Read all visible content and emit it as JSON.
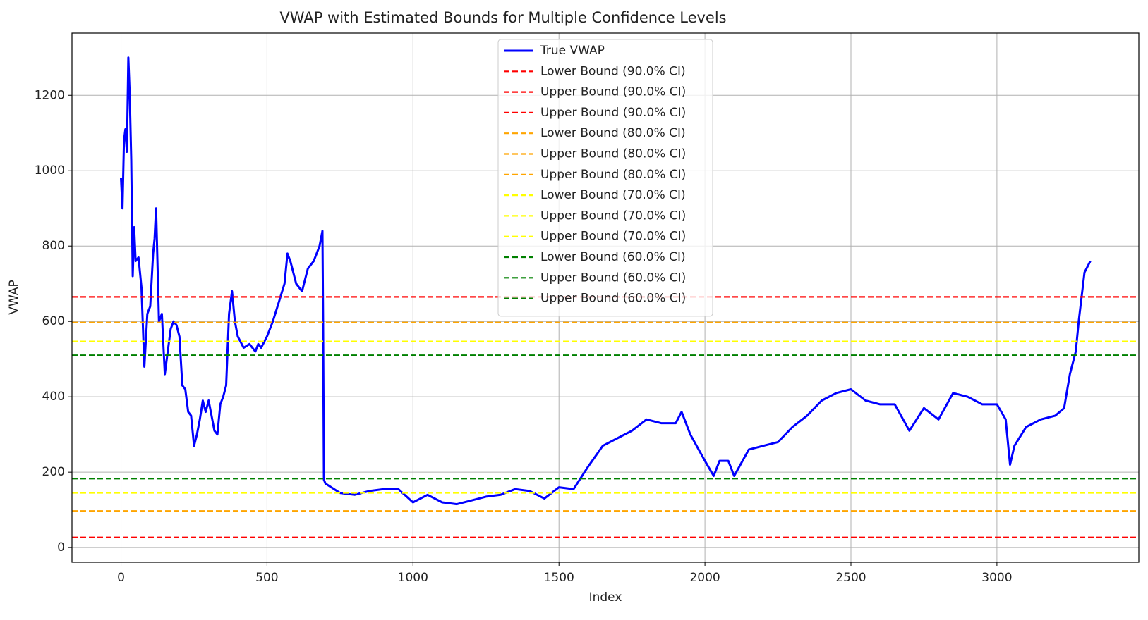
{
  "chart_data": {
    "type": "line",
    "title": "VWAP with Estimated Bounds for Multiple Confidence Levels",
    "xlabel": "Index",
    "ylabel": "VWAP",
    "xlim": [
      -168,
      3486
    ],
    "ylim": [
      -39,
      1365
    ],
    "xticks": [
      0,
      500,
      1000,
      1500,
      2000,
      2500,
      3000
    ],
    "yticks": [
      0,
      200,
      400,
      600,
      800,
      1000,
      1200
    ],
    "grid": true,
    "legend": "upper center",
    "x": [
      0,
      5,
      10,
      15,
      20,
      25,
      30,
      35,
      40,
      45,
      50,
      60,
      70,
      80,
      90,
      100,
      110,
      115,
      120,
      130,
      140,
      150,
      160,
      170,
      180,
      190,
      200,
      210,
      220,
      230,
      240,
      250,
      260,
      270,
      280,
      290,
      300,
      310,
      320,
      330,
      340,
      350,
      360,
      370,
      380,
      390,
      400,
      420,
      440,
      460,
      470,
      480,
      500,
      520,
      540,
      560,
      570,
      580,
      600,
      620,
      640,
      660,
      680,
      690,
      692,
      695,
      700,
      750,
      800,
      850,
      900,
      950,
      1000,
      1050,
      1100,
      1150,
      1200,
      1250,
      1300,
      1350,
      1400,
      1450,
      1500,
      1550,
      1600,
      1650,
      1700,
      1750,
      1800,
      1850,
      1900,
      1920,
      1950,
      2000,
      2030,
      2050,
      2080,
      2100,
      2150,
      2200,
      2250,
      2300,
      2350,
      2400,
      2450,
      2500,
      2550,
      2600,
      2650,
      2700,
      2750,
      2800,
      2850,
      2900,
      2950,
      3000,
      3030,
      3045,
      3060,
      3100,
      3150,
      3200,
      3230,
      3250,
      3270,
      3280,
      3300,
      3320
    ],
    "series": [
      {
        "name": "True VWAP",
        "color": "#0000ff",
        "values": [
          980,
          900,
          1080,
          1110,
          1050,
          1300,
          1200,
          1030,
          720,
          850,
          760,
          770,
          690,
          480,
          620,
          640,
          780,
          820,
          900,
          600,
          620,
          460,
          520,
          580,
          600,
          590,
          560,
          430,
          420,
          360,
          350,
          270,
          300,
          340,
          390,
          360,
          390,
          350,
          310,
          300,
          380,
          400,
          430,
          620,
          680,
          600,
          560,
          530,
          540,
          520,
          540,
          530,
          560,
          600,
          650,
          700,
          780,
          760,
          700,
          680,
          740,
          760,
          800,
          840,
          600,
          180,
          170,
          145,
          140,
          150,
          155,
          155,
          120,
          140,
          120,
          115,
          125,
          135,
          140,
          155,
          150,
          130,
          160,
          155,
          215,
          270,
          290,
          310,
          340,
          330,
          330,
          360,
          300,
          230,
          190,
          230,
          230,
          190,
          260,
          270,
          280,
          320,
          350,
          390,
          410,
          420,
          390,
          380,
          380,
          310,
          370,
          340,
          410,
          400,
          380,
          380,
          340,
          220,
          270,
          320,
          340,
          350,
          370,
          460,
          520,
          600,
          730,
          760
        ]
      }
    ],
    "hlines": [
      {
        "name": "Lower Bound (90.0% CI)",
        "color": "#ff0000",
        "value": 27
      },
      {
        "name": "Upper Bound (90.0% CI)",
        "color": "#ff0000",
        "value": 665
      },
      {
        "name": "Upper Bound (90.0% CI)",
        "color": "#ff0000",
        "value": 665
      },
      {
        "name": "Lower Bound (80.0% CI)",
        "color": "#ffa500",
        "value": 97
      },
      {
        "name": "Upper Bound (80.0% CI)",
        "color": "#ffa500",
        "value": 597
      },
      {
        "name": "Upper Bound (80.0% CI)",
        "color": "#ffa500",
        "value": 597
      },
      {
        "name": "Lower Bound (70.0% CI)",
        "color": "#ffff00",
        "value": 145
      },
      {
        "name": "Upper Bound (70.0% CI)",
        "color": "#ffff00",
        "value": 547
      },
      {
        "name": "Upper Bound (70.0% CI)",
        "color": "#ffff00",
        "value": 547
      },
      {
        "name": "Lower Bound (60.0% CI)",
        "color": "#008000",
        "value": 183
      },
      {
        "name": "Upper Bound (60.0% CI)",
        "color": "#008000",
        "value": 510
      },
      {
        "name": "Upper Bound (60.0% CI)",
        "color": "#008000",
        "value": 510
      }
    ]
  }
}
